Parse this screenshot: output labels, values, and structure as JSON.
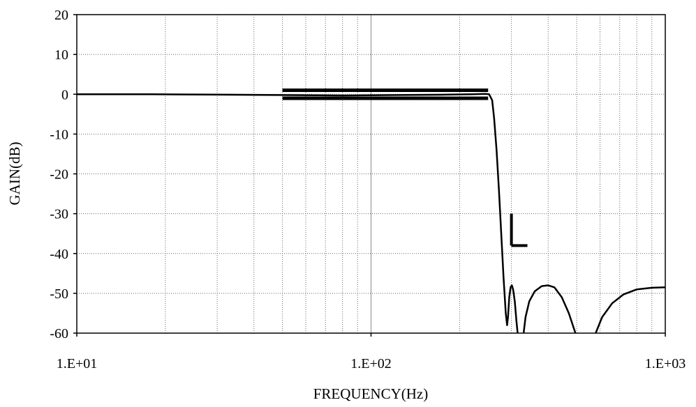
{
  "chart_data": {
    "type": "line",
    "title": "",
    "xlabel": "FREQUENCY(Hz)",
    "ylabel": "GAIN(dB)",
    "x_scale": "log",
    "xlim": [
      10,
      1000
    ],
    "ylim": [
      -60,
      20
    ],
    "x_tick_values": [
      10,
      100,
      1000
    ],
    "x_tick_labels": [
      "1.E+01",
      "1.E+02",
      "1.E+03"
    ],
    "y_ticks": [
      20,
      10,
      0,
      -10,
      -20,
      -30,
      -40,
      -50,
      -60
    ],
    "grid": true,
    "series": [
      {
        "color": "#000000",
        "points": [
          [
            10,
            0
          ],
          [
            18,
            0
          ],
          [
            30,
            -0.1
          ],
          [
            50,
            -0.2
          ],
          [
            80,
            -0.3
          ],
          [
            120,
            -0.2
          ],
          [
            180,
            -0.1
          ],
          [
            220,
            0
          ],
          [
            245,
            0.1
          ],
          [
            252,
            0
          ],
          [
            258,
            -1.5
          ],
          [
            262,
            -6
          ],
          [
            267,
            -14
          ],
          [
            272,
            -24
          ],
          [
            277,
            -35
          ],
          [
            282,
            -46
          ],
          [
            287,
            -55
          ],
          [
            290,
            -58
          ],
          [
            292,
            -56
          ],
          [
            295,
            -51
          ],
          [
            298,
            -48.5
          ],
          [
            301,
            -48
          ],
          [
            304,
            -49
          ],
          [
            308,
            -52
          ],
          [
            312,
            -57
          ],
          [
            315,
            -60
          ]
        ]
      },
      {
        "color": "#000000",
        "points": [
          [
            330,
            -60
          ],
          [
            335,
            -56
          ],
          [
            345,
            -52
          ],
          [
            360,
            -49.5
          ],
          [
            380,
            -48.2
          ],
          [
            400,
            -48
          ],
          [
            420,
            -48.5
          ],
          [
            445,
            -51
          ],
          [
            470,
            -55
          ],
          [
            495,
            -60
          ]
        ]
      },
      {
        "color": "#000000",
        "points": [
          [
            580,
            -60
          ],
          [
            610,
            -56
          ],
          [
            660,
            -52.5
          ],
          [
            720,
            -50.3
          ],
          [
            800,
            -49
          ],
          [
            900,
            -48.6
          ],
          [
            1000,
            -48.5
          ]
        ]
      }
    ],
    "passband_template": {
      "x_range": [
        50,
        250
      ],
      "upper_db": 1,
      "lower_db": -1
    },
    "stopband_template": {
      "x_start": 300,
      "x_end": 340,
      "level_db": -38,
      "vertical_from_db": -30
    }
  }
}
